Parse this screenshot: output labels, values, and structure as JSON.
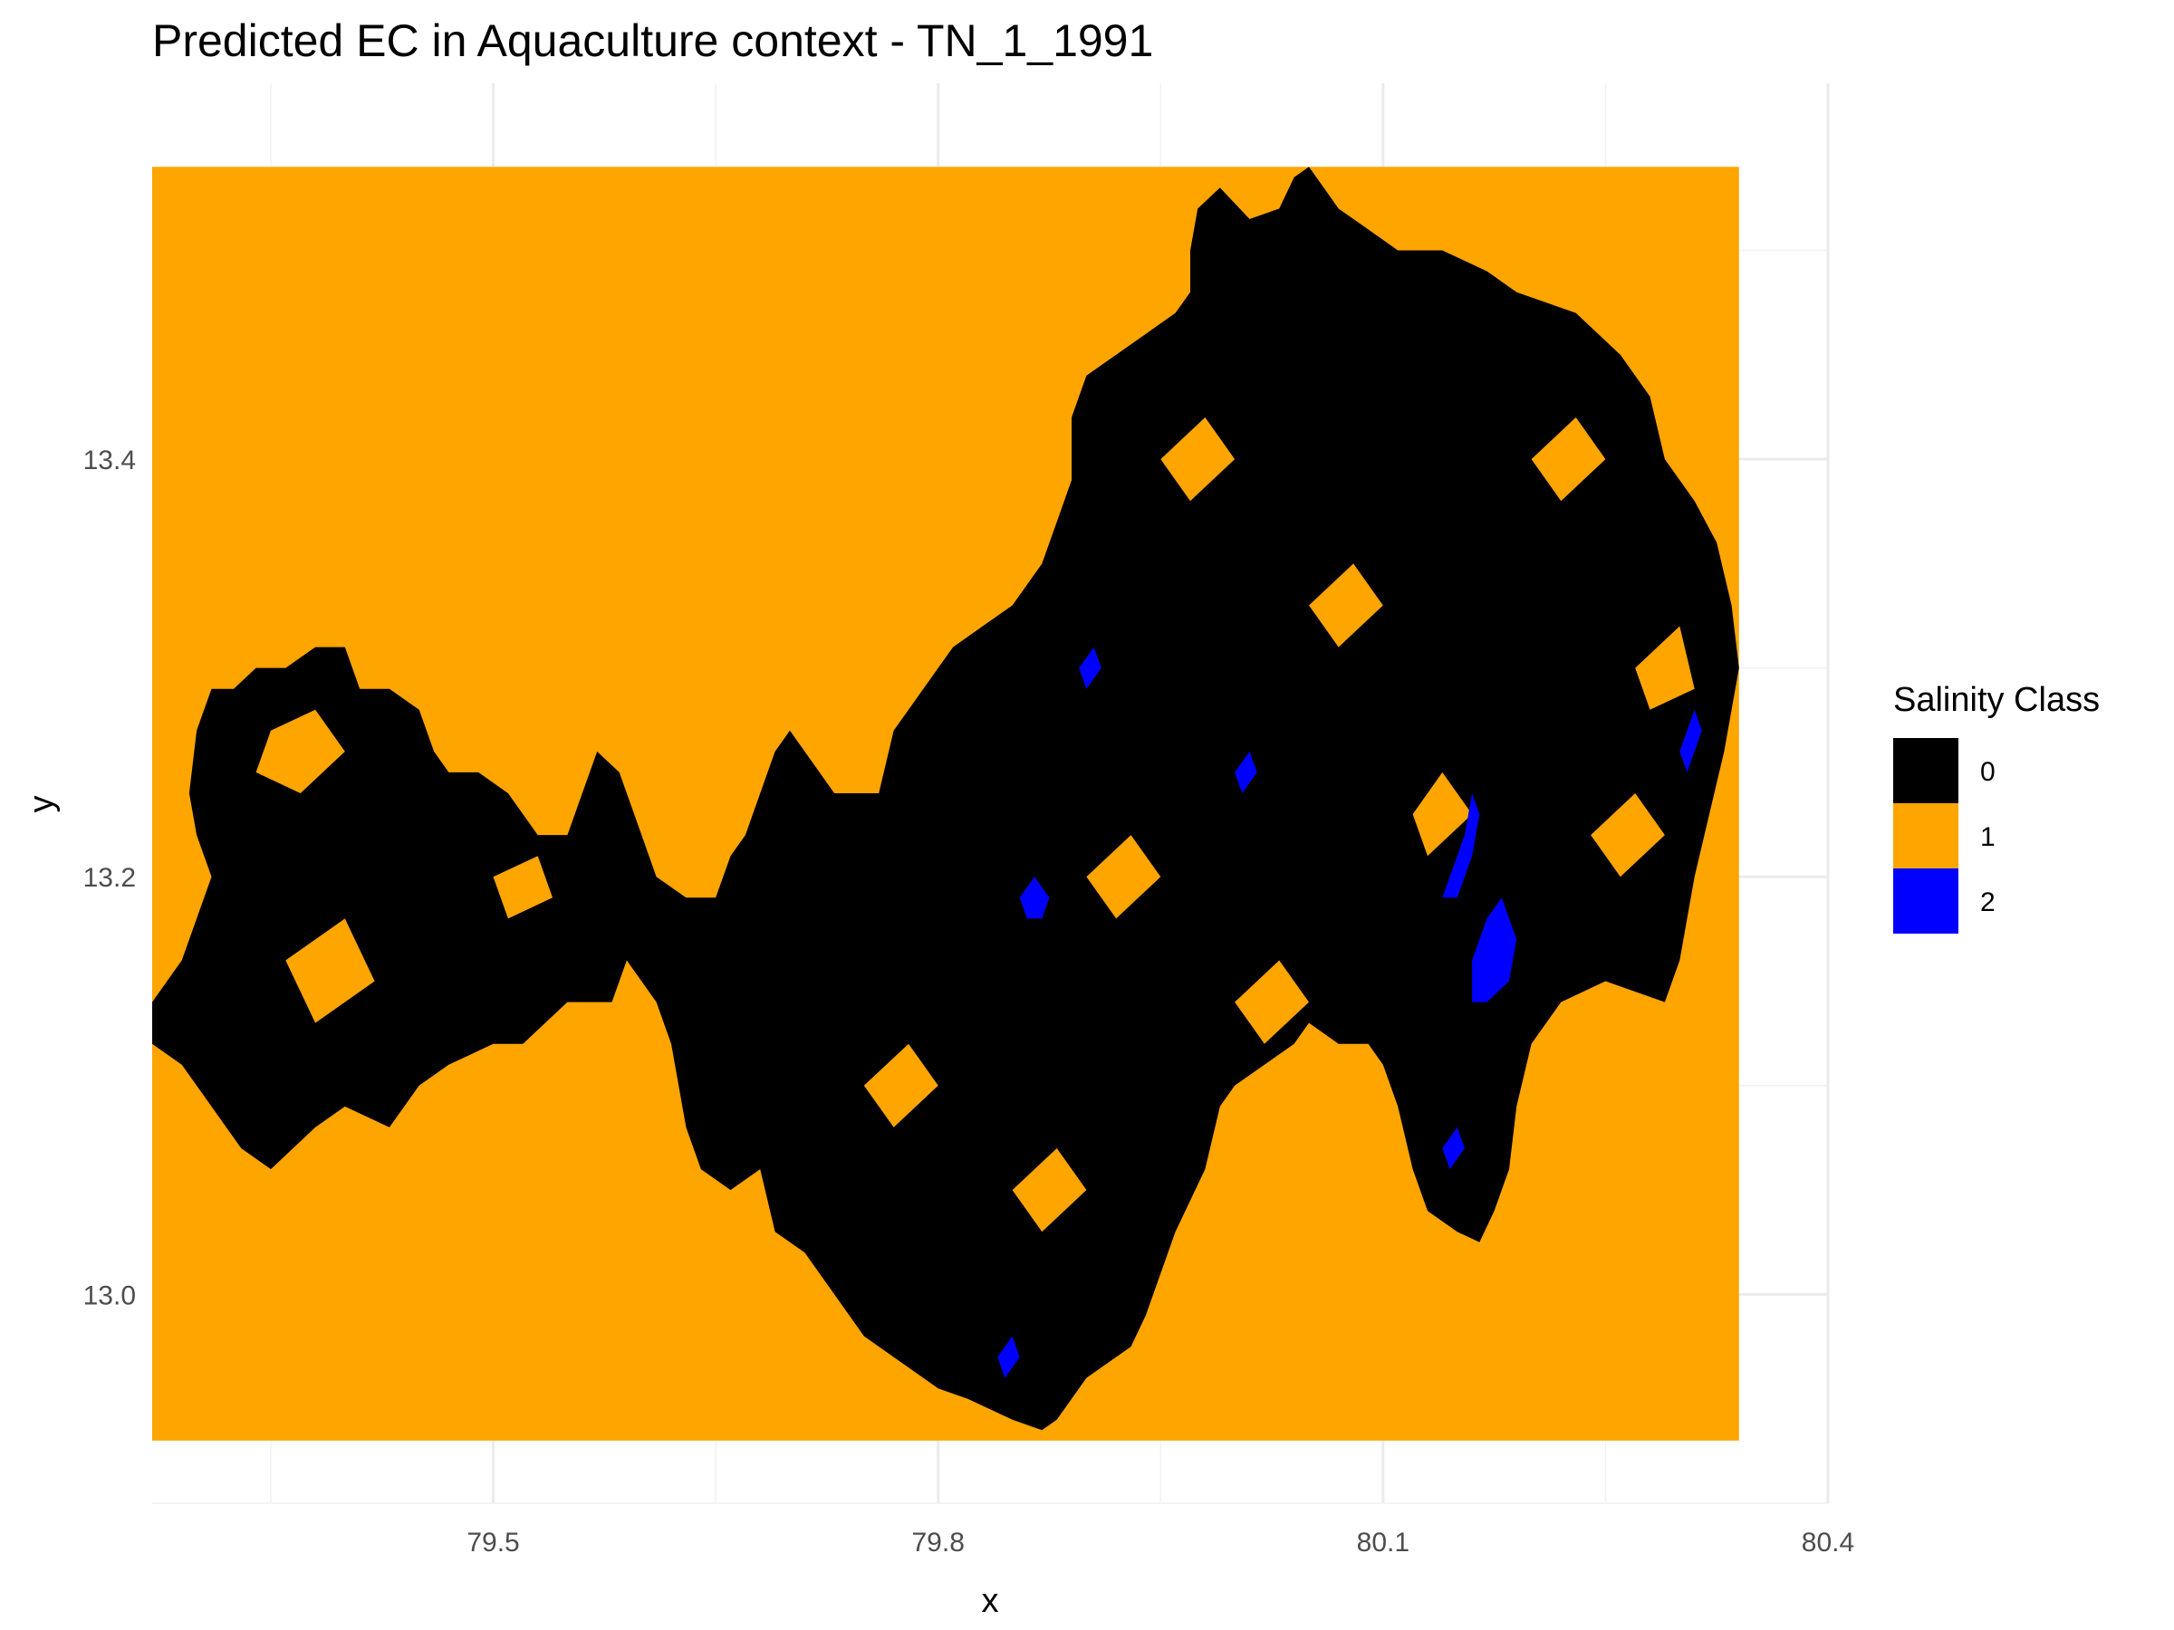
{
  "chart_data": {
    "type": "heatmap",
    "title": "Predicted EC in Aquaculture context - TN_1_1991",
    "xlabel": "x",
    "ylabel": "y",
    "x_ticks": [
      "79.5",
      "79.8",
      "80.1",
      "80.4"
    ],
    "y_ticks": [
      "13.0",
      "13.2",
      "13.4"
    ],
    "xlim": [
      79.27,
      80.4
    ],
    "ylim": [
      12.9,
      13.58
    ],
    "raster_extent": {
      "x": [
        79.27,
        80.34
      ],
      "y": [
        12.93,
        13.54
      ]
    },
    "grid": true,
    "legend": {
      "title": "Salinity Class",
      "position": "right",
      "entries": [
        {
          "label": "0",
          "color": "#000000"
        },
        {
          "label": "1",
          "color": "#FFA500"
        },
        {
          "label": "2",
          "color": "#0000FF"
        }
      ]
    },
    "background_class": "1",
    "region_class": "0",
    "region_boundary": [
      [
        79.27,
        13.12
      ],
      [
        79.29,
        13.11
      ],
      [
        79.31,
        13.09
      ],
      [
        79.33,
        13.07
      ],
      [
        79.35,
        13.06
      ],
      [
        79.38,
        13.08
      ],
      [
        79.4,
        13.09
      ],
      [
        79.43,
        13.08
      ],
      [
        79.45,
        13.1
      ],
      [
        79.47,
        13.11
      ],
      [
        79.5,
        13.12
      ],
      [
        79.52,
        13.12
      ],
      [
        79.55,
        13.14
      ],
      [
        79.58,
        13.14
      ],
      [
        79.59,
        13.16
      ],
      [
        79.61,
        13.14
      ],
      [
        79.62,
        13.12
      ],
      [
        79.63,
        13.08
      ],
      [
        79.64,
        13.06
      ],
      [
        79.66,
        13.05
      ],
      [
        79.68,
        13.06
      ],
      [
        79.69,
        13.03
      ],
      [
        79.71,
        13.02
      ],
      [
        79.73,
        13.0
      ],
      [
        79.74,
        12.99
      ],
      [
        79.75,
        12.98
      ],
      [
        79.77,
        12.97
      ],
      [
        79.79,
        12.96
      ],
      [
        79.8,
        12.955
      ],
      [
        79.82,
        12.95
      ],
      [
        79.85,
        12.94
      ],
      [
        79.87,
        12.935
      ],
      [
        79.88,
        12.94
      ],
      [
        79.9,
        12.96
      ],
      [
        79.93,
        12.975
      ],
      [
        79.94,
        12.99
      ],
      [
        79.96,
        13.03
      ],
      [
        79.98,
        13.06
      ],
      [
        79.99,
        13.09
      ],
      [
        80.0,
        13.1
      ],
      [
        80.02,
        13.11
      ],
      [
        80.04,
        13.12
      ],
      [
        80.05,
        13.13
      ],
      [
        80.07,
        13.12
      ],
      [
        80.09,
        13.12
      ],
      [
        80.1,
        13.11
      ],
      [
        80.11,
        13.09
      ],
      [
        80.12,
        13.06
      ],
      [
        80.13,
        13.04
      ],
      [
        80.15,
        13.03
      ],
      [
        80.165,
        13.025
      ],
      [
        80.175,
        13.04
      ],
      [
        80.185,
        13.06
      ],
      [
        80.19,
        13.09
      ],
      [
        80.2,
        13.12
      ],
      [
        80.22,
        13.14
      ],
      [
        80.25,
        13.15
      ],
      [
        80.29,
        13.14
      ],
      [
        80.3,
        13.16
      ],
      [
        80.31,
        13.2
      ],
      [
        80.32,
        13.23
      ],
      [
        80.33,
        13.26
      ],
      [
        80.34,
        13.3
      ],
      [
        80.335,
        13.33
      ],
      [
        80.325,
        13.36
      ],
      [
        80.31,
        13.38
      ],
      [
        80.29,
        13.4
      ],
      [
        80.28,
        13.43
      ],
      [
        80.26,
        13.45
      ],
      [
        80.23,
        13.47
      ],
      [
        80.19,
        13.48
      ],
      [
        80.17,
        13.49
      ],
      [
        80.14,
        13.5
      ],
      [
        80.11,
        13.5
      ],
      [
        80.09,
        13.51
      ],
      [
        80.07,
        13.52
      ],
      [
        80.06,
        13.53
      ],
      [
        80.05,
        13.54
      ],
      [
        80.04,
        13.535
      ],
      [
        80.03,
        13.52
      ],
      [
        80.01,
        13.515
      ],
      [
        79.99,
        13.53
      ],
      [
        79.975,
        13.52
      ],
      [
        79.97,
        13.5
      ],
      [
        79.97,
        13.48
      ],
      [
        79.96,
        13.47
      ],
      [
        79.94,
        13.46
      ],
      [
        79.92,
        13.45
      ],
      [
        79.9,
        13.44
      ],
      [
        79.89,
        13.42
      ],
      [
        79.89,
        13.39
      ],
      [
        79.88,
        13.37
      ],
      [
        79.87,
        13.35
      ],
      [
        79.85,
        13.33
      ],
      [
        79.83,
        13.32
      ],
      [
        79.81,
        13.31
      ],
      [
        79.8,
        13.3
      ],
      [
        79.79,
        13.29
      ],
      [
        79.77,
        13.27
      ],
      [
        79.76,
        13.24
      ],
      [
        79.73,
        13.24
      ],
      [
        79.71,
        13.26
      ],
      [
        79.7,
        13.27
      ],
      [
        79.69,
        13.26
      ],
      [
        79.68,
        13.24
      ],
      [
        79.67,
        13.22
      ],
      [
        79.66,
        13.21
      ],
      [
        79.65,
        13.19
      ],
      [
        79.63,
        13.19
      ],
      [
        79.61,
        13.2
      ],
      [
        79.6,
        13.22
      ],
      [
        79.585,
        13.25
      ],
      [
        79.57,
        13.26
      ],
      [
        79.56,
        13.24
      ],
      [
        79.55,
        13.22
      ],
      [
        79.53,
        13.22
      ],
      [
        79.51,
        13.24
      ],
      [
        79.49,
        13.25
      ],
      [
        79.47,
        13.25
      ],
      [
        79.46,
        13.26
      ],
      [
        79.45,
        13.28
      ],
      [
        79.43,
        13.29
      ],
      [
        79.41,
        13.29
      ],
      [
        79.4,
        13.31
      ],
      [
        79.38,
        13.31
      ],
      [
        79.36,
        13.3
      ],
      [
        79.34,
        13.3
      ],
      [
        79.325,
        13.29
      ],
      [
        79.31,
        13.29
      ],
      [
        79.3,
        13.27
      ],
      [
        79.295,
        13.24
      ],
      [
        79.3,
        13.22
      ],
      [
        79.31,
        13.2
      ],
      [
        79.3,
        13.18
      ],
      [
        79.29,
        13.16
      ],
      [
        79.28,
        13.15
      ],
      [
        79.27,
        13.14
      ]
    ],
    "class2_regions": [
      [
        [
          80.145,
          13.2
        ],
        [
          80.155,
          13.22
        ],
        [
          80.16,
          13.24
        ],
        [
          80.165,
          13.23
        ],
        [
          80.16,
          13.21
        ],
        [
          80.15,
          13.19
        ],
        [
          80.14,
          13.19
        ]
      ],
      [
        [
          80.16,
          13.16
        ],
        [
          80.17,
          13.18
        ],
        [
          80.18,
          13.19
        ],
        [
          80.19,
          13.17
        ],
        [
          80.185,
          13.15
        ],
        [
          80.17,
          13.14
        ],
        [
          80.16,
          13.14
        ]
      ],
      [
        [
          79.855,
          13.19
        ],
        [
          79.865,
          13.2
        ],
        [
          79.875,
          13.19
        ],
        [
          79.87,
          13.18
        ],
        [
          79.86,
          13.18
        ]
      ],
      [
        [
          80.0,
          13.25
        ],
        [
          80.01,
          13.26
        ],
        [
          80.015,
          13.25
        ],
        [
          80.005,
          13.24
        ]
      ],
      [
        [
          79.895,
          13.3
        ],
        [
          79.905,
          13.31
        ],
        [
          79.91,
          13.3
        ],
        [
          79.9,
          13.29
        ]
      ],
      [
        [
          80.3,
          13.26
        ],
        [
          80.31,
          13.28
        ],
        [
          80.315,
          13.27
        ],
        [
          80.305,
          13.25
        ]
      ],
      [
        [
          79.84,
          12.97
        ],
        [
          79.85,
          12.98
        ],
        [
          79.855,
          12.97
        ],
        [
          79.845,
          12.96
        ]
      ],
      [
        [
          80.14,
          13.07
        ],
        [
          80.15,
          13.08
        ],
        [
          80.155,
          13.07
        ],
        [
          80.145,
          13.06
        ]
      ]
    ],
    "class1_patches_within_region": [
      [
        [
          79.35,
          13.27
        ],
        [
          79.38,
          13.28
        ],
        [
          79.4,
          13.26
        ],
        [
          79.37,
          13.24
        ],
        [
          79.34,
          13.25
        ]
      ],
      [
        [
          79.36,
          13.16
        ],
        [
          79.4,
          13.18
        ],
        [
          79.42,
          13.15
        ],
        [
          79.38,
          13.13
        ]
      ],
      [
        [
          79.5,
          13.2
        ],
        [
          79.53,
          13.21
        ],
        [
          79.54,
          13.19
        ],
        [
          79.51,
          13.18
        ]
      ],
      [
        [
          79.75,
          13.1
        ],
        [
          79.78,
          13.12
        ],
        [
          79.8,
          13.1
        ],
        [
          79.77,
          13.08
        ]
      ],
      [
        [
          79.85,
          13.05
        ],
        [
          79.88,
          13.07
        ],
        [
          79.9,
          13.05
        ],
        [
          79.87,
          13.03
        ]
      ],
      [
        [
          79.95,
          13.4
        ],
        [
          79.98,
          13.42
        ],
        [
          80.0,
          13.4
        ],
        [
          79.97,
          13.38
        ]
      ],
      [
        [
          80.05,
          13.33
        ],
        [
          80.08,
          13.35
        ],
        [
          80.1,
          13.33
        ],
        [
          80.07,
          13.31
        ]
      ],
      [
        [
          80.2,
          13.4
        ],
        [
          80.23,
          13.42
        ],
        [
          80.25,
          13.4
        ],
        [
          80.22,
          13.38
        ]
      ],
      [
        [
          80.24,
          13.22
        ],
        [
          80.27,
          13.24
        ],
        [
          80.29,
          13.22
        ],
        [
          80.26,
          13.2
        ]
      ],
      [
        [
          80.27,
          13.3
        ],
        [
          80.3,
          13.32
        ],
        [
          80.31,
          13.29
        ],
        [
          80.28,
          13.28
        ]
      ],
      [
        [
          80.12,
          13.23
        ],
        [
          80.14,
          13.25
        ],
        [
          80.16,
          13.23
        ],
        [
          80.13,
          13.21
        ]
      ],
      [
        [
          79.9,
          13.2
        ],
        [
          79.93,
          13.22
        ],
        [
          79.95,
          13.2
        ],
        [
          79.92,
          13.18
        ]
      ],
      [
        [
          80.0,
          13.14
        ],
        [
          80.03,
          13.16
        ],
        [
          80.05,
          13.14
        ],
        [
          80.02,
          13.12
        ]
      ]
    ]
  }
}
